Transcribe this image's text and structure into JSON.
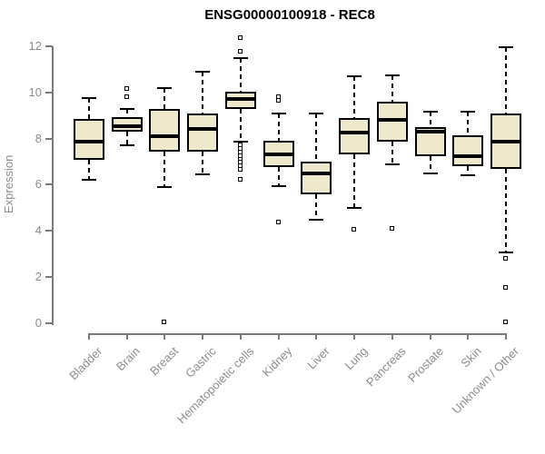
{
  "header": {
    "title": "ENSG00000100918 - REC8"
  },
  "chart_data": {
    "type": "boxplot",
    "title": "ENSG00000100918 - REC8",
    "xlabel": "",
    "ylabel": "Expression",
    "ylim": [
      0,
      12
    ],
    "yticks": [
      0,
      2,
      4,
      6,
      8,
      10,
      12
    ],
    "grid": false,
    "legend": null,
    "box_fill_color": "#EEE8CD",
    "box_border_color": "#000000",
    "axis_color": "#7A7A7A",
    "label_color": "#8C8C8C",
    "categories": [
      "Bladder",
      "Brain",
      "Breast",
      "Gastric",
      "Hematopoietic cells",
      "Kidney",
      "Liver",
      "Lung",
      "Pancreas",
      "Prostate",
      "Skin",
      "Unknown / Other"
    ],
    "boxes": [
      {
        "category": "Bladder",
        "whisker_low": 6.2,
        "q1": 7.1,
        "median": 7.85,
        "q3": 8.85,
        "whisker_high": 9.75,
        "outliers": []
      },
      {
        "category": "Brain",
        "whisker_low": 7.7,
        "q1": 8.3,
        "median": 8.55,
        "q3": 8.95,
        "whisker_high": 9.3,
        "outliers": [
          10.15,
          9.8
        ]
      },
      {
        "category": "Breast",
        "whisker_low": 5.9,
        "q1": 7.45,
        "median": 8.1,
        "q3": 9.3,
        "whisker_high": 10.2,
        "outliers": [
          0.05
        ]
      },
      {
        "category": "Gastric",
        "whisker_low": 6.45,
        "q1": 7.45,
        "median": 8.4,
        "q3": 9.1,
        "whisker_high": 10.9,
        "outliers": []
      },
      {
        "category": "Hematopoietic cells",
        "whisker_low": 7.85,
        "q1": 9.3,
        "median": 9.7,
        "q3": 10.05,
        "whisker_high": 11.5,
        "outliers": [
          12.35,
          11.75,
          7.7,
          7.55,
          7.4,
          7.25,
          7.1,
          6.95,
          6.8,
          6.65,
          6.2
        ]
      },
      {
        "category": "Kidney",
        "whisker_low": 5.95,
        "q1": 6.75,
        "median": 7.3,
        "q3": 7.9,
        "whisker_high": 9.1,
        "outliers": [
          9.8,
          9.65,
          4.35
        ]
      },
      {
        "category": "Liver",
        "whisker_low": 4.5,
        "q1": 5.6,
        "median": 6.5,
        "q3": 7.0,
        "whisker_high": 9.1,
        "outliers": []
      },
      {
        "category": "Lung",
        "whisker_low": 5.0,
        "q1": 7.3,
        "median": 8.25,
        "q3": 8.9,
        "whisker_high": 10.7,
        "outliers": [
          4.05
        ]
      },
      {
        "category": "Pancreas",
        "whisker_low": 6.9,
        "q1": 7.85,
        "median": 8.8,
        "q3": 9.6,
        "whisker_high": 10.75,
        "outliers": [
          4.1
        ]
      },
      {
        "category": "Prostate",
        "whisker_low": 6.5,
        "q1": 7.25,
        "median": 8.3,
        "q3": 8.5,
        "whisker_high": 9.15,
        "outliers": []
      },
      {
        "category": "Skin",
        "whisker_low": 6.4,
        "q1": 6.8,
        "median": 7.25,
        "q3": 8.15,
        "whisker_high": 9.15,
        "outliers": []
      },
      {
        "category": "Unknown / Other",
        "whisker_low": 3.05,
        "q1": 6.7,
        "median": 7.85,
        "q3": 9.1,
        "whisker_high": 11.95,
        "outliers": [
          2.8,
          1.55,
          0.05
        ]
      }
    ]
  }
}
